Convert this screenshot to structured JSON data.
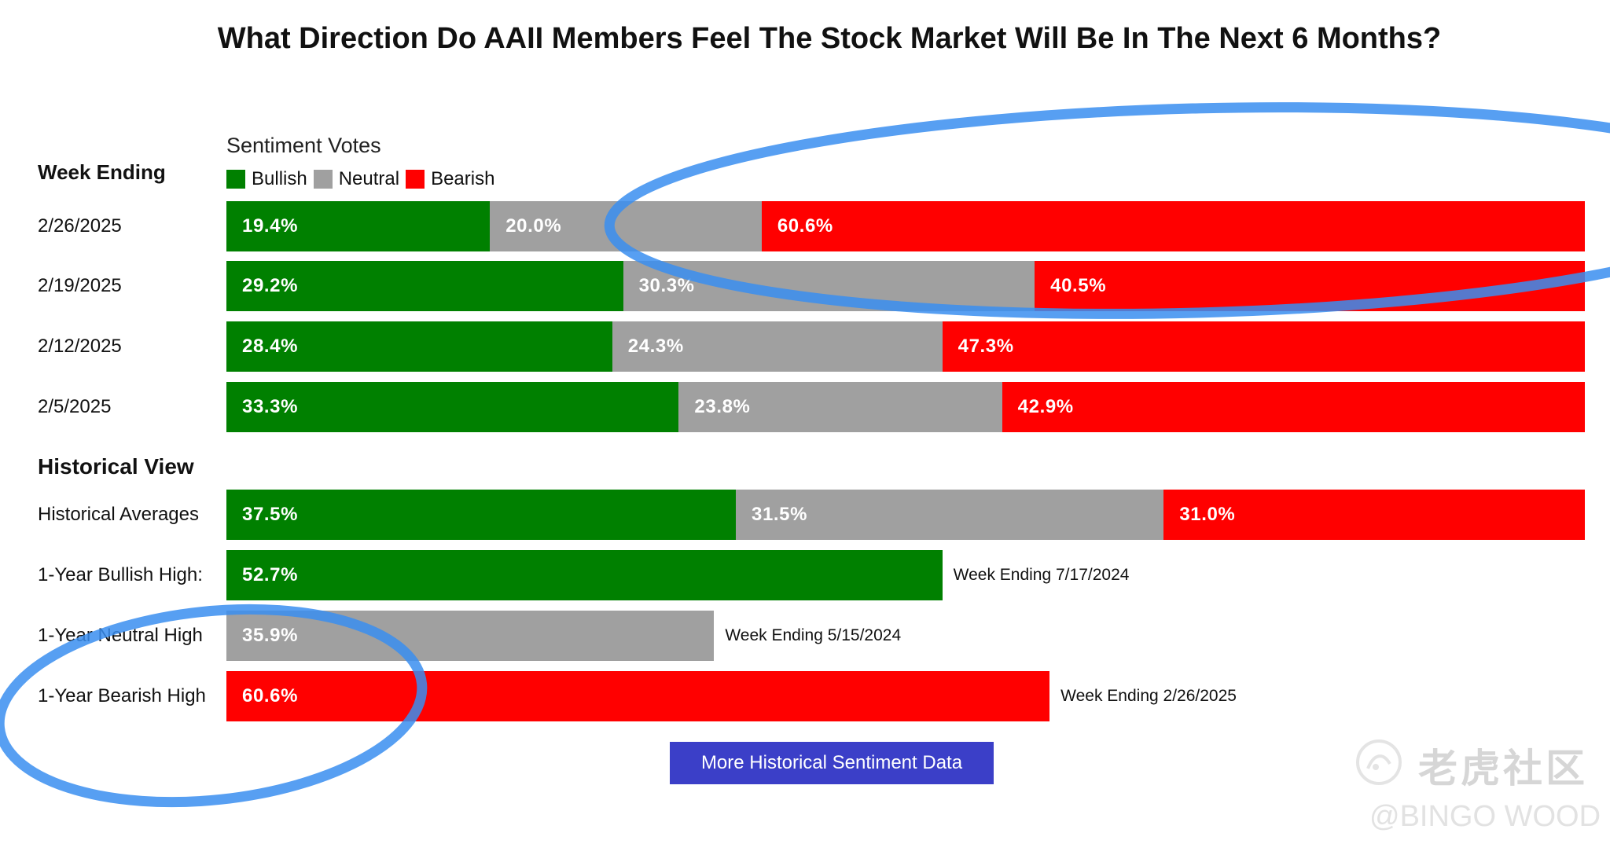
{
  "title": "What Direction Do AAII Members Feel The Stock Market Will Be In The Next 6 Months?",
  "legend": {
    "heading": "Sentiment Votes",
    "items": [
      {
        "label": "Bullish",
        "color": "#008000"
      },
      {
        "label": "Neutral",
        "color": "#a0a0a0"
      },
      {
        "label": "Bearish",
        "color": "#ff0000"
      }
    ]
  },
  "sections": {
    "weekly": "Week Ending",
    "historical": "Historical View"
  },
  "chart_data": {
    "type": "bar",
    "orientation": "horizontal",
    "stacked": true,
    "unit": "%",
    "categories": [
      "2/26/2025",
      "2/19/2025",
      "2/12/2025",
      "2/5/2025",
      "Historical Averages",
      "1-Year Bullish High:",
      "1-Year Neutral High",
      "1-Year Bearish High"
    ],
    "series": [
      {
        "name": "Bullish",
        "color": "#008000",
        "values": [
          19.4,
          29.2,
          28.4,
          33.3,
          37.5,
          52.7,
          null,
          null
        ]
      },
      {
        "name": "Neutral",
        "color": "#a0a0a0",
        "values": [
          20.0,
          30.3,
          24.3,
          23.8,
          31.5,
          null,
          35.9,
          null
        ]
      },
      {
        "name": "Bearish",
        "color": "#ff0000",
        "values": [
          60.6,
          40.5,
          47.3,
          42.9,
          31.0,
          null,
          null,
          60.6
        ]
      }
    ],
    "value_labels": [
      [
        "19.4%",
        "20.0%",
        "60.6%"
      ],
      [
        "29.2%",
        "30.3%",
        "40.5%"
      ],
      [
        "28.4%",
        "24.3%",
        "47.3%"
      ],
      [
        "33.3%",
        "23.8%",
        "42.9%"
      ],
      [
        "37.5%",
        "31.5%",
        "31.0%"
      ],
      [
        "52.7%"
      ],
      [
        "35.9%"
      ],
      [
        "60.6%"
      ]
    ],
    "notes": [
      "",
      "",
      "",
      "",
      "",
      "Week Ending 7/17/2024",
      "Week Ending 5/15/2024",
      "Week Ending 2/26/2025"
    ]
  },
  "button": {
    "label": "More Historical Sentiment Data"
  },
  "watermark": {
    "brand": "老虎社区",
    "user": "@BINGO WOOD",
    "icon": "tiger-logo-icon"
  },
  "annotations": {
    "circle_color": "#3a8ef0"
  }
}
